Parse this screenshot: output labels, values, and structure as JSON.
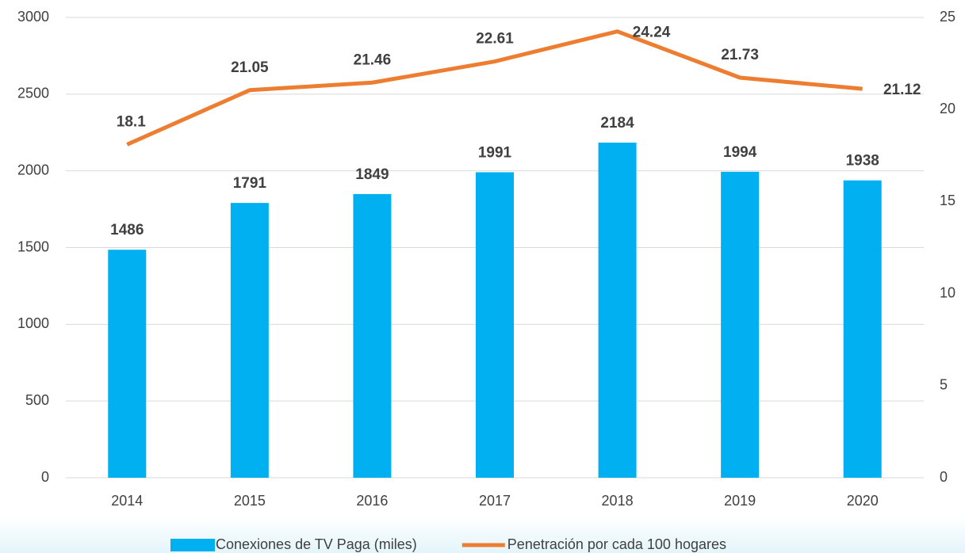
{
  "chart_data": {
    "type": "bar-line",
    "categories": [
      "2014",
      "2015",
      "2016",
      "2017",
      "2018",
      "2019",
      "2020"
    ],
    "series": [
      {
        "name": "Conexiones de TV Paga (miles)",
        "type": "bar",
        "color": "#00b0f0",
        "values": [
          1486,
          1791,
          1849,
          1991,
          2184,
          1994,
          1938
        ]
      },
      {
        "name": "Penetración por cada 100 hogares",
        "type": "line",
        "axis": "y2",
        "color": "#ed7d31",
        "values": [
          18.1,
          21.05,
          21.46,
          22.61,
          24.24,
          21.73,
          21.12
        ]
      }
    ],
    "ylim": [
      0,
      3000
    ],
    "yticks": [
      0,
      500,
      1000,
      1500,
      2000,
      2500,
      3000
    ],
    "y2lim": [
      0,
      25
    ],
    "y2ticks": [
      0,
      5,
      10,
      15,
      20,
      25
    ],
    "grid": true,
    "legend": "bottom"
  }
}
